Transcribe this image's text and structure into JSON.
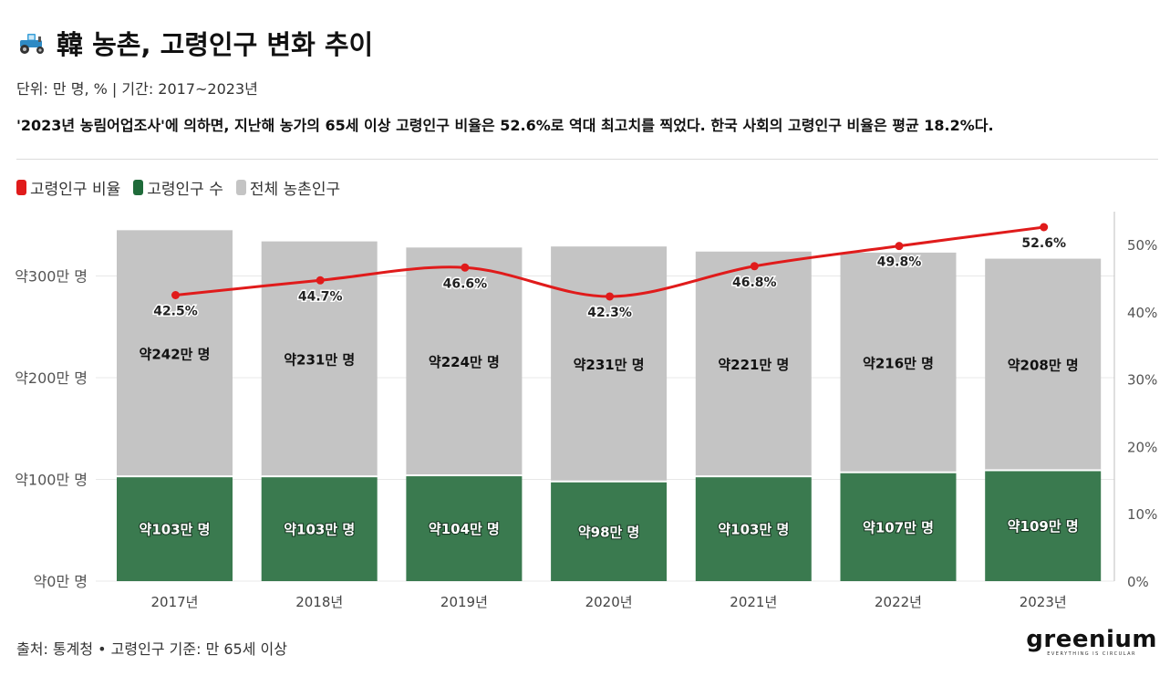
{
  "header": {
    "title": "韓 농촌, 고령인구 변화 추이",
    "icon": "tractor-icon",
    "meta": "단위: 만 명, % | 기간: 2017~2023년",
    "description": "'2023년 농림어업조사'에 의하면, 지난해 농가의 65세 이상 고령인구 비율은 52.6%로 역대 최고치를 찍었다. 한국 사회의 고령인구 비율은 평균 18.2%다."
  },
  "footer": {
    "source": "출처: 통계청 • 고령인구 기준: 만 65세 이상",
    "logo": "greenium",
    "logo_sub": "EVERYTHING IS CIRCULAR"
  },
  "colors": {
    "ratio": "#e01b1b",
    "elderly": "#3a7a4f",
    "total": "#c4c4c4"
  },
  "chart_data": {
    "type": "bar",
    "title": "",
    "categories": [
      "2017년",
      "2018년",
      "2019년",
      "2020년",
      "2021년",
      "2022년",
      "2023년"
    ],
    "legend": [
      "고령인구 비율",
      "고령인구 수",
      "전체 농촌인구"
    ],
    "legend_position": "top-left",
    "series": [
      {
        "name": "고령인구 수",
        "kind": "bar",
        "values": [
          103,
          103,
          104,
          98,
          103,
          107,
          109
        ],
        "labels": [
          "약103만 명",
          "약103만 명",
          "약104만 명",
          "약98만 명",
          "약103만 명",
          "약107만 명",
          "약109만 명"
        ]
      },
      {
        "name": "전체 농촌인구",
        "kind": "bar-stacked",
        "values": [
          242,
          231,
          224,
          231,
          221,
          216,
          208
        ],
        "labels": [
          "약242만 명",
          "약231만 명",
          "약224만 명",
          "약231만 명",
          "약221만 명",
          "약216만 명",
          "약208만 명"
        ]
      },
      {
        "name": "고령인구 비율",
        "kind": "line",
        "axis": "right",
        "values": [
          42.5,
          44.7,
          46.6,
          42.3,
          46.8,
          49.8,
          52.6
        ],
        "labels": [
          "42.5%",
          "44.7%",
          "46.6%",
          "42.3%",
          "46.8%",
          "49.8%",
          "52.6%"
        ]
      }
    ],
    "y_left": {
      "ticks": [
        0,
        100,
        200,
        300
      ],
      "tick_labels": [
        "약0만 명",
        "약100만 명",
        "약200만 명",
        "약300만 명"
      ],
      "range": [
        0,
        348
      ]
    },
    "y_right": {
      "ticks": [
        0,
        10,
        20,
        30,
        40,
        50
      ],
      "tick_labels": [
        "0%",
        "10%",
        "20%",
        "30%",
        "40%",
        "50%"
      ],
      "range": [
        0,
        52.6
      ]
    },
    "grid": true
  }
}
